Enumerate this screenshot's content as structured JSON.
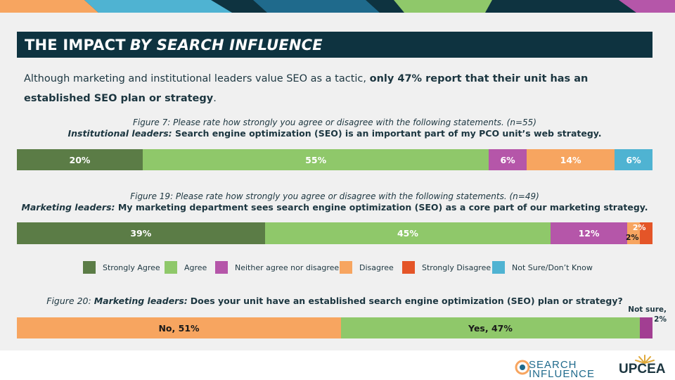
{
  "title": {
    "main": "THE IMPACT",
    "emphasis": "BY SEARCH INFLUENCE"
  },
  "intro": {
    "plain": "Although marketing and institutional leaders value SEO as a tactic, ",
    "bold": "only 47% report that their unit has an established SEO plan or strategy",
    "end": "."
  },
  "colors": {
    "strongly_agree": "#5b7c46",
    "agree": "#8fc86a",
    "neither": "#b556a9",
    "disagree": "#f7a560",
    "strongly_disagree": "#e45528",
    "not_sure": "#4fb3d2",
    "title_bg": "#0e3340",
    "accent_purple": "#a23e92"
  },
  "legend": [
    {
      "label": "Strongly Agree",
      "color": "#5b7c46"
    },
    {
      "label": "Agree",
      "color": "#8fc86a"
    },
    {
      "label": "Neither agree nor disagree",
      "color": "#b556a9"
    },
    {
      "label": "Disagree",
      "color": "#f7a560"
    },
    {
      "label": "Strongly Disagree",
      "color": "#e45528"
    },
    {
      "label": "Not Sure/Don’t Know",
      "color": "#4fb3d2"
    }
  ],
  "chart_data": [
    {
      "type": "bar",
      "caption": "Figure 7: Please rate how strongly you agree or disagree with the following statements. (n=55)",
      "subject": "Institutional leaders:",
      "statement": "Search engine optimization (SEO) is an important part of my PCO unit’s web strategy.",
      "categories": [
        "Strongly Agree",
        "Agree",
        "Neither agree nor disagree",
        "Disagree",
        "Not Sure/Don’t Know"
      ],
      "values": [
        20,
        55,
        6,
        14,
        6
      ],
      "labels": [
        "20%",
        "55%",
        "6%",
        "14%",
        "6%"
      ]
    },
    {
      "type": "bar",
      "caption": "Figure 19: Please rate how strongly you agree or disagree with the following statements. (n=49)",
      "subject": "Marketing leaders:",
      "statement": "My marketing department sees search engine optimization (SEO) as a core part of our marketing strategy.",
      "categories": [
        "Strongly Agree",
        "Agree",
        "Neither agree nor disagree",
        "Disagree",
        "Strongly Disagree"
      ],
      "values": [
        39,
        45,
        12,
        2,
        2
      ],
      "labels": [
        "39%",
        "45%",
        "12%",
        "2%",
        "2%"
      ]
    },
    {
      "type": "bar",
      "caption_prefix": "Figure 20:",
      "subject": "Marketing leaders:",
      "question": "Does your unit have an established search engine optimization (SEO) plan or strategy?",
      "categories": [
        "No",
        "Yes",
        "Not sure"
      ],
      "values": [
        51,
        47,
        2
      ],
      "labels": [
        "No, 51%",
        "Yes, 47%",
        "Not sure, 2%"
      ],
      "outside_label": [
        "Not sure,",
        "2%"
      ]
    }
  ],
  "logos": {
    "search_influence": [
      "SEARCH",
      "INFLUENCE"
    ],
    "upcea": "UPCEA"
  }
}
